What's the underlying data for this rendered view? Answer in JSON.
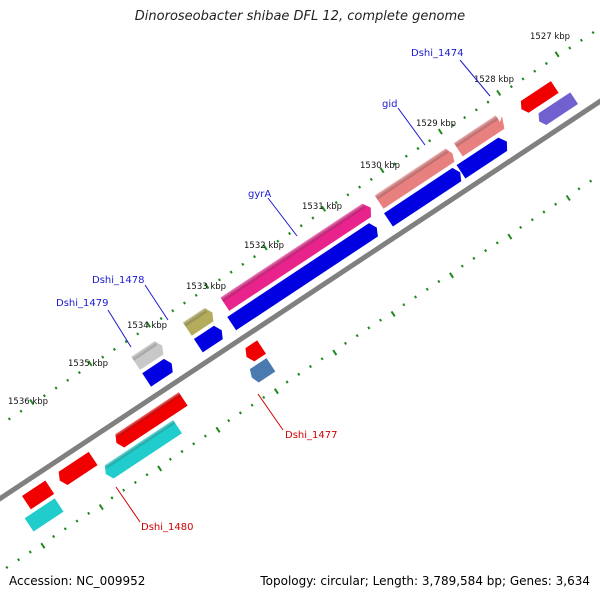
{
  "title": "Dinoroseobacter shibae DFL 12, complete genome",
  "accession": "Accession: NC_009952",
  "summary": "Topology: circular; Length: 3,789,584 bp; Genes: 3,634",
  "kbp_labels": [
    "1527 kbp",
    "1528 kbp",
    "1529 kbp",
    "1530 kbp",
    "1531 kbp",
    "1532 kbp",
    "1533 kbp",
    "1534 kbp",
    "1535 kbp",
    "1536 kbp"
  ],
  "gene_labels": {
    "dshi_1474": "Dshi_1474",
    "gid": "gid",
    "gyra": "gyrA",
    "dshi_1478": "Dshi_1478",
    "dshi_1479": "Dshi_1479",
    "dshi_1477": "Dshi_1477",
    "dshi_1480": "Dshi_1480"
  },
  "colors": {
    "backbone": "#808080",
    "tick": "#1e8a1e",
    "label_blue": "#1a1ad0",
    "label_red": "#d00000",
    "cds_blue": "#0000e0",
    "salmon": "#e88080",
    "magenta": "#e8248c",
    "olive": "#b4ac5c",
    "gray": "#c8c8c8",
    "red": "#f00000",
    "cyan": "#20cccc",
    "steel": "#4a7ab0",
    "purple": "#7060d0"
  }
}
